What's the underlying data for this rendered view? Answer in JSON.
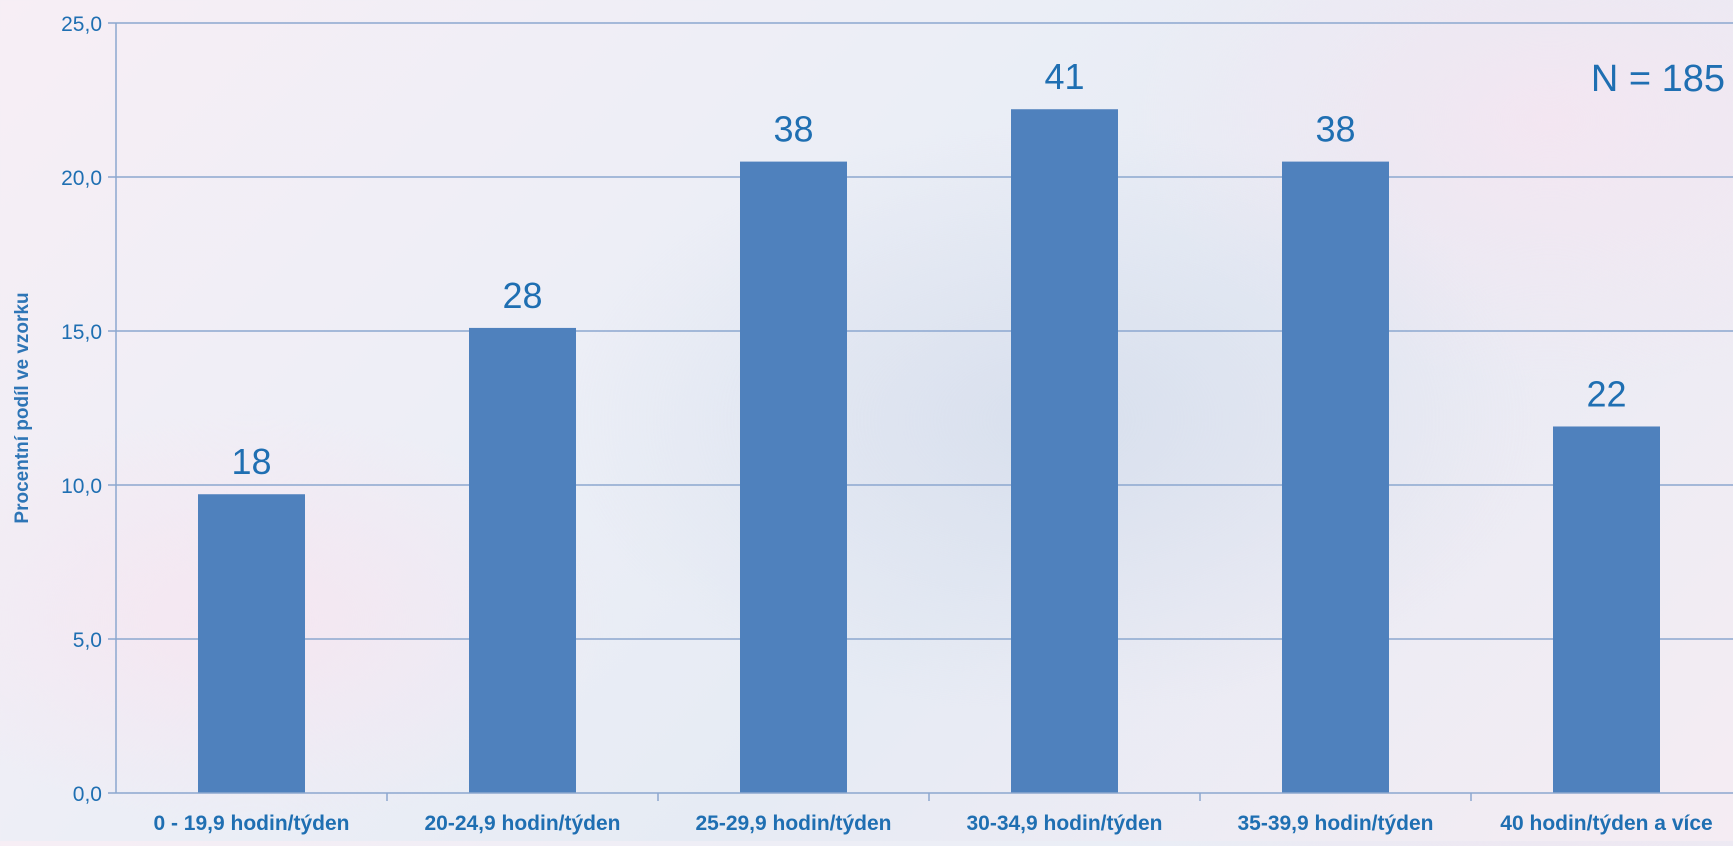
{
  "chart_data": {
    "type": "bar",
    "title": "",
    "xlabel": "",
    "ylabel": "Procentní podíl ve vzorku",
    "annotation": "N = 185",
    "categories": [
      "0 - 19,9 hodin/týden",
      "20-24,9 hodin/týden",
      "25-29,9 hodin/týden",
      "30-34,9 hodin/týden",
      "35-39,9 hodin/týden",
      "40 hodin/týden a více"
    ],
    "values": [
      9.7,
      15.1,
      20.5,
      22.2,
      20.5,
      11.9
    ],
    "data_labels": [
      "18",
      "28",
      "38",
      "41",
      "38",
      "22"
    ],
    "ylim": [
      0,
      25
    ],
    "yticks": [
      0,
      5,
      10,
      15,
      20,
      25
    ],
    "ytick_labels": [
      "0,0",
      "5,0",
      "10,0",
      "15,0",
      "20,0",
      "25,0"
    ],
    "grid": true,
    "legend": "none",
    "colors": {
      "bar": "#4f81bd",
      "text": "#1f6fb2",
      "axis_label": "#2e75b6",
      "gridline": "#8ca7cf",
      "axis": "#8ca7cf"
    }
  }
}
